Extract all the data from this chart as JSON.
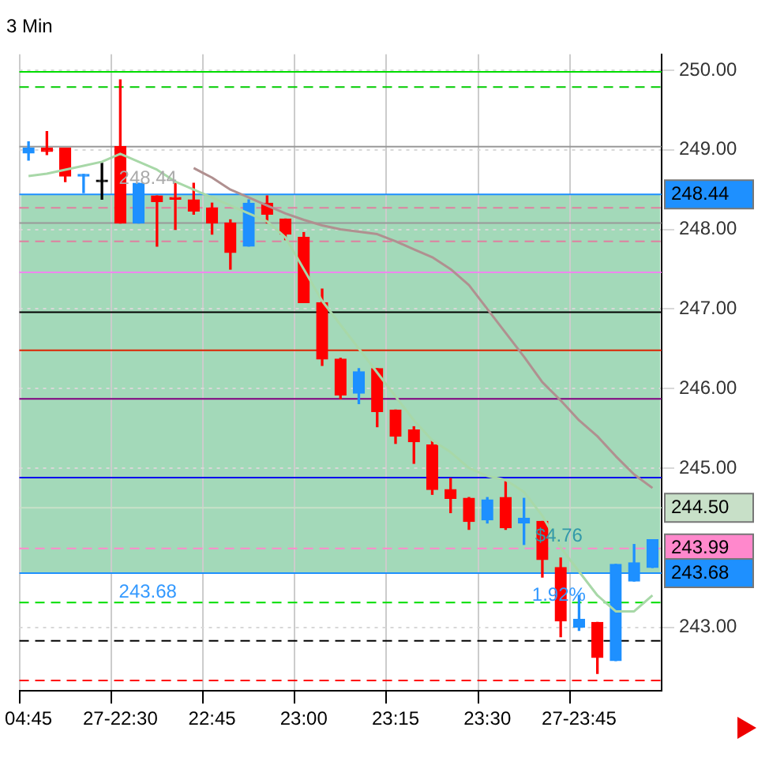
{
  "chart_data": {
    "type": "candlestick",
    "title": "3 Min",
    "categories": [
      "04:45",
      null,
      null,
      null,
      null,
      "27-22:30",
      null,
      null,
      null,
      null,
      "22:45",
      null,
      null,
      null,
      null,
      "23:00",
      null,
      null,
      null,
      null,
      "23:15",
      null,
      null,
      null,
      null,
      "23:30",
      null,
      null,
      null,
      null,
      "27-23:45",
      null,
      null,
      null,
      null
    ],
    "ohlc": [
      [
        248.96,
        249.1,
        248.87,
        249.02
      ],
      [
        249.02,
        249.23,
        248.94,
        248.98
      ],
      [
        249.02,
        249.02,
        248.6,
        248.67
      ],
      [
        248.67,
        248.69,
        248.46,
        248.69
      ],
      [
        248.6,
        248.83,
        248.38,
        248.6
      ],
      [
        249.04,
        249.88,
        248.08,
        248.08
      ],
      [
        248.08,
        248.58,
        248.08,
        248.58
      ],
      [
        248.42,
        248.42,
        247.79,
        248.35
      ],
      [
        248.4,
        248.58,
        248.0,
        248.38
      ],
      [
        248.37,
        248.58,
        248.19,
        248.23
      ],
      [
        248.27,
        248.33,
        247.94,
        248.08
      ],
      [
        248.08,
        248.12,
        247.5,
        247.71
      ],
      [
        247.79,
        248.37,
        247.79,
        248.33
      ],
      [
        248.33,
        248.42,
        248.08,
        248.19
      ],
      [
        248.13,
        248.13,
        247.87,
        247.94
      ],
      [
        247.9,
        247.96,
        247.08,
        247.08
      ],
      [
        247.08,
        247.25,
        246.29,
        246.37
      ],
      [
        246.37,
        246.38,
        245.87,
        245.92
      ],
      [
        245.94,
        246.25,
        245.81,
        246.21
      ],
      [
        246.25,
        246.25,
        245.52,
        245.71
      ],
      [
        245.73,
        245.73,
        245.31,
        245.4
      ],
      [
        245.48,
        245.52,
        245.06,
        245.33
      ],
      [
        245.29,
        245.35,
        244.67,
        244.73
      ],
      [
        244.73,
        244.87,
        244.44,
        244.62
      ],
      [
        244.62,
        244.63,
        244.23,
        244.33
      ],
      [
        244.35,
        244.63,
        244.31,
        244.6
      ],
      [
        244.63,
        244.83,
        244.23,
        244.25
      ],
      [
        244.31,
        244.62,
        244.04,
        244.37
      ],
      [
        244.33,
        244.33,
        243.63,
        243.85
      ],
      [
        243.75,
        243.87,
        242.88,
        243.08
      ],
      [
        243.0,
        243.4,
        242.96,
        243.1
      ],
      [
        243.06,
        243.06,
        242.42,
        242.62
      ],
      [
        242.58,
        243.79,
        242.58,
        243.79
      ],
      [
        243.58,
        244.04,
        243.58,
        243.81
      ],
      [
        243.75,
        244.1,
        243.75,
        244.1
      ]
    ],
    "colors": [
      "#1e90ff",
      "#ff0000",
      "#ff0000",
      "#1e90ff",
      "#000000",
      "#ff0000",
      "#1e90ff",
      "#ff0000",
      "#ff0000",
      "#ff0000",
      "#ff0000",
      "#ff0000",
      "#1e90ff",
      "#ff0000",
      "#ff0000",
      "#ff0000",
      "#ff0000",
      "#ff0000",
      "#1e90ff",
      "#ff0000",
      "#ff0000",
      "#ff0000",
      "#ff0000",
      "#ff0000",
      "#ff0000",
      "#1e90ff",
      "#ff0000",
      "#1e90ff",
      "#ff0000",
      "#ff0000",
      "#1e90ff",
      "#ff0000",
      "#1e90ff",
      "#1e90ff",
      "#1e90ff"
    ],
    "series": [
      {
        "type": "line",
        "color": "#a8d8a8",
        "values": [
          248.67,
          248.7,
          248.75,
          248.8,
          248.85,
          248.95,
          248.85,
          248.75,
          248.6,
          248.5,
          248.4,
          248.3,
          248.2,
          248.1,
          247.9,
          247.5,
          247.1,
          246.8,
          246.5,
          246.2,
          245.9,
          245.6,
          245.35,
          245.2,
          245.0,
          244.9,
          244.85,
          244.7,
          244.4,
          244.0,
          243.7,
          243.4,
          243.2,
          243.2,
          243.4
        ]
      },
      {
        "type": "line",
        "color": "#b09090",
        "values": [
          null,
          null,
          null,
          null,
          null,
          null,
          null,
          null,
          null,
          248.77,
          248.65,
          248.5,
          248.4,
          248.3,
          248.2,
          248.12,
          248.05,
          248.0,
          247.97,
          247.94,
          247.85,
          247.75,
          247.65,
          247.5,
          247.3,
          247.0,
          246.7,
          246.4,
          246.08,
          245.85,
          245.6,
          245.4,
          245.15,
          244.92,
          244.75
        ]
      }
    ],
    "ylim": [
      242.2,
      250.2
    ],
    "yticks": [
      {
        "value": 243,
        "label": "243.00"
      },
      {
        "value": 245,
        "label": "245.00"
      },
      {
        "value": 246,
        "label": "246.00"
      },
      {
        "value": 247,
        "label": "247.00"
      },
      {
        "value": 248,
        "label": "248.00"
      },
      {
        "value": 249,
        "label": "249.00"
      },
      {
        "value": 250,
        "label": "250.00"
      }
    ],
    "grid": true,
    "bands": [
      {
        "axis": "y",
        "from": 243.68,
        "to": 248.44,
        "color": "#8ccfa8"
      }
    ],
    "ref_lines": [
      {
        "axis": "y",
        "value": 249.98,
        "color": "#00dd00"
      },
      {
        "axis": "y",
        "value": 249.79,
        "color": "#00cc00",
        "line_style": "dashed"
      },
      {
        "axis": "y",
        "value": 249.04,
        "color": "#999999"
      },
      {
        "axis": "y",
        "value": 248.44,
        "color": "#1e90ff",
        "label": "248.44"
      },
      {
        "axis": "y",
        "value": 248.27,
        "color": "#e080a0",
        "line_style": "dashed"
      },
      {
        "axis": "y",
        "value": 248.08,
        "color": "#999999"
      },
      {
        "axis": "y",
        "value": 247.85,
        "color": "#e080a0",
        "line_style": "dashed"
      },
      {
        "axis": "y",
        "value": 247.46,
        "color": "#ee88ee"
      },
      {
        "axis": "y",
        "value": 246.96,
        "color": "#000000"
      },
      {
        "axis": "y",
        "value": 246.48,
        "color": "#dd2200"
      },
      {
        "axis": "y",
        "value": 245.87,
        "color": "#800080"
      },
      {
        "axis": "y",
        "value": 244.88,
        "color": "#0000ee"
      },
      {
        "axis": "y",
        "value": 244.5,
        "color": "#c8e0c8",
        "label": "244.50"
      },
      {
        "axis": "y",
        "value": 243.99,
        "color": "#ff88cc",
        "line_style": "dashed",
        "label": "243.99"
      },
      {
        "axis": "y",
        "value": 243.68,
        "color": "#1e90ff",
        "label": "243.68"
      },
      {
        "axis": "y",
        "value": 243.31,
        "color": "#00dd00",
        "line_style": "dashed"
      },
      {
        "axis": "y",
        "value": 242.83,
        "color": "#000000",
        "line_style": "dashed"
      },
      {
        "axis": "y",
        "value": 242.33,
        "color": "#ff0000",
        "line_style": "dashed"
      }
    ],
    "annotations": [
      {
        "text": "248.44",
        "y": 248.44
      },
      {
        "text": "243.68",
        "y": 243.68
      },
      {
        "text": "$4.76",
        "y": 243.9
      },
      {
        "text": "1.92%",
        "y": 243.68
      }
    ]
  }
}
